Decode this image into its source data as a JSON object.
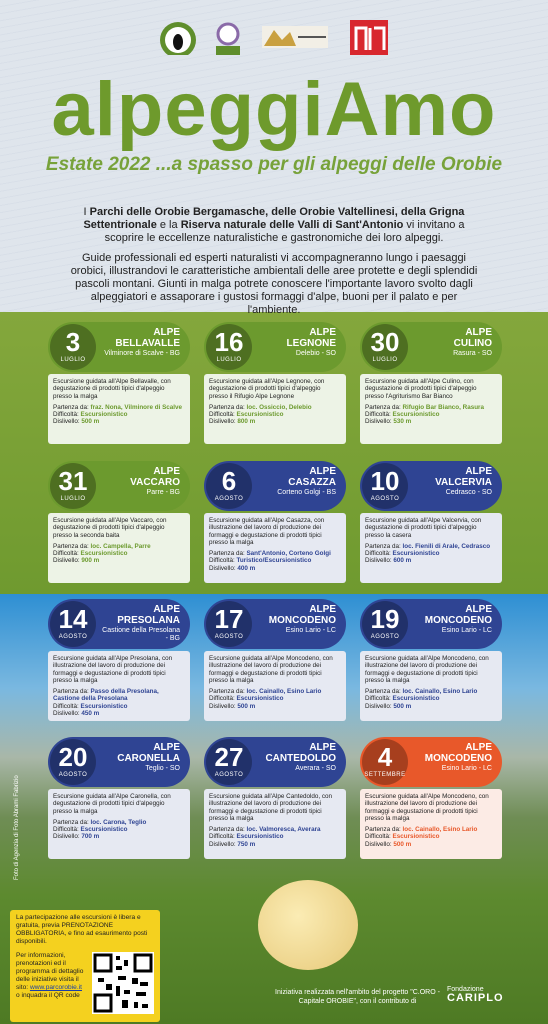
{
  "header": {
    "title": "alpeggiAmo",
    "subtitle": "Estate 2022 ...a spasso per gli alpeggi delle Orobie"
  },
  "intro": {
    "paragraph_1": [
      {
        "text": "I ",
        "bold": false
      },
      {
        "text": "Parchi delle Orobie Bergamasche, delle Orobie Valtellinesi, della Grigna Settentrionale",
        "bold": true
      },
      {
        "text": " e la ",
        "bold": false
      },
      {
        "text": "Riserva naturale delle Valli di Sant'Antonio",
        "bold": true
      },
      {
        "text": " vi invitano a scoprire le eccellenze naturalistiche e gastronomiche dei loro alpeggi.",
        "bold": false
      }
    ],
    "paragraph_2": "Guide professionali ed esperti naturalisti vi accompagneranno lungo i paesaggi orobici, illustrandovi le caratteristiche ambientali delle aree protette e degli splendidi pascoli montani. Giunti in malga potrete conoscere l'importante lavoro svolto dagli alpeggiatori e assaporare i gustosi formaggi d'alpe, buoni per il palato e per l'ambiente."
  },
  "labels": {
    "start": "Partenza da:",
    "difficulty": "Difficoltà:",
    "elevation": "Dislivello:"
  },
  "cards": [
    {
      "day": "3",
      "month": "LUGLIO",
      "name": [
        "ALPE",
        "BELLAVALLE"
      ],
      "place": "Vilminore di Scalve - BG",
      "color": "#6c9a2e",
      "description": "Escursione guidata all'Alpe Bellavalle, con degustazione di prodotti tipici d'alpeggio presso la malga",
      "start": "fraz. Nona, Vilminore di Scalve",
      "difficulty": "Escursionistico",
      "elevation": "500 m"
    },
    {
      "day": "16",
      "month": "LUGLIO",
      "name": [
        "ALPE",
        "LEGNONE"
      ],
      "place": "Delebio - SO",
      "color": "#6c9a2e",
      "description": "Escursione guidata all'Alpe Legnone, con degustazione di prodotti tipici d'alpeggio presso il Rifugio Alpe Legnone",
      "start": "loc. Ossiccio, Delebio",
      "difficulty": "Escursionistico",
      "elevation": "800 m"
    },
    {
      "day": "30",
      "month": "LUGLIO",
      "name": [
        "ALPE",
        "CULINO"
      ],
      "place": "Rasura - SO",
      "color": "#6c9a2e",
      "description": "Escursione guidata all'Alpe Culino, con degustazione di prodotti tipici d'alpeggio presso l'Agriturismo Bar Bianco",
      "start": "Rifugio Bar Bianco, Rasura",
      "difficulty": "Escursionistico",
      "elevation": "530 m"
    },
    {
      "day": "31",
      "month": "LUGLIO",
      "name": [
        "ALPE",
        "VACCARO"
      ],
      "place": "Parre - BG",
      "color": "#6c9a2e",
      "description": "Escursione guidata all'Alpe Vaccaro, con degustazione di prodotti tipici d'alpeggio presso la seconda baita",
      "start": "loc. Campella, Parre",
      "difficulty": "Escursionistico",
      "elevation": "900 m"
    },
    {
      "day": "6",
      "month": "AGOSTO",
      "name": [
        "ALPE",
        "CASAZZA"
      ],
      "place": "Corteno Golgi - BS",
      "color": "#2f4493",
      "description": "Escursione guidata all'Alpe Casazza, con illustrazione del lavoro di produzione dei formaggi e degustazione di prodotti tipici presso la malga",
      "start": "Sant'Antonio, Corteno Golgi",
      "difficulty": "Turistico/Escursionistico",
      "elevation": "400 m"
    },
    {
      "day": "10",
      "month": "AGOSTO",
      "name": [
        "ALPE",
        "VALCERVIA"
      ],
      "place": "Cedrasco - SO",
      "color": "#2f4493",
      "description": "Escursione guidata all'Alpe Valcervia, con degustazione di prodotti tipici d'alpeggio presso la casera",
      "start": "loc. Fienili di Arale, Cedrasco",
      "difficulty": "Escursionistico",
      "elevation": "600 m"
    },
    {
      "day": "14",
      "month": "AGOSTO",
      "name": [
        "ALPE",
        "PRESOLANA"
      ],
      "place": "Castione della Presolana - BG",
      "color": "#2f4493",
      "description": "Escursione guidata all'Alpe Presolana, con illustrazione del lavoro di produzione dei formaggi e degustazione di prodotti tipici presso la malga",
      "start": "Passo della Presolana, Castione della Presolana",
      "difficulty": "Escursionistico",
      "elevation": "450 m"
    },
    {
      "day": "17",
      "month": "AGOSTO",
      "name": [
        "ALPE",
        "MONCODENO"
      ],
      "place": "Esino Lario - LC",
      "color": "#2f4493",
      "description": "Escursione guidata all'Alpe Moncodeno, con illustrazione del lavoro di produzione dei formaggi e degustazione di prodotti tipici presso la malga",
      "start": "loc. Cainallo, Esino Lario",
      "difficulty": "Escursionistico",
      "elevation": "500 m"
    },
    {
      "day": "19",
      "month": "AGOSTO",
      "name": [
        "ALPE",
        "MONCODENO"
      ],
      "place": "Esino Lario - LC",
      "color": "#2f4493",
      "description": "Escursione guidata all'Alpe Moncodeno, con illustrazione del lavoro di produzione dei formaggi e degustazione di prodotti tipici presso la malga",
      "start": "loc. Cainallo, Esino Lario",
      "difficulty": "Escursionistico",
      "elevation": "500 m"
    },
    {
      "day": "20",
      "month": "AGOSTO",
      "name": [
        "ALPE",
        "CARONELLA"
      ],
      "place": "Teglio - SO",
      "color": "#2f4493",
      "description": "Escursione guidata all'Alpe Caronella, con degustazione di prodotti tipici d'alpeggio presso la malga",
      "start": "loc. Carona, Teglio",
      "difficulty": "Escursionistico",
      "elevation": "700 m"
    },
    {
      "day": "27",
      "month": "AGOSTO",
      "name": [
        "ALPE",
        "CANTEDOLDO"
      ],
      "place": "Averara - SO",
      "color": "#2f4493",
      "description": "Escursione guidata all'Alpe Cantedoldo, con illustrazione del lavoro di produzione dei formaggi e degustazione di prodotti tipici presso la malga",
      "start": "loc. Valmoresca, Averara",
      "difficulty": "Escursionistico",
      "elevation": "750 m"
    },
    {
      "day": "4",
      "month": "SETTEMBRE",
      "name": [
        "ALPE",
        "MONCODENO"
      ],
      "place": "Esino Lario - LC",
      "color": "#e8582a",
      "description": "Escursione guidata all'Alpe Moncodeno, con illustrazione del lavoro di produzione dei formaggi e degustazione di prodotti tipici presso la malga",
      "start": "loc. Cainallo, Esino Lario",
      "difficulty": "Escursionistico",
      "elevation": "500 m"
    }
  ],
  "info": {
    "paragraph_1": "La partecipazione alle escursioni è libera e gratuita, previa PRENOTAZIONE OBBLIGATORIA, e fino ad esaurimento posti disponibili.",
    "paragraph_2": "Per informazioni, prenotazioni ed il programma di dettaglio delle iniziative visita il sito:",
    "link": "www.parcorobie.it",
    "paragraph_3": "o inquadra il QR code"
  },
  "credit": "Foto di Agenzia di Foto Abrami Fabrizio",
  "footer": {
    "text": "Iniziativa realizzata nell'ambito del progetto \"C.ORO - Capitale OROBIE\", con il contributo di",
    "sponsor_line_1": "Fondazione",
    "sponsor_line_2": "CARIPLO"
  }
}
